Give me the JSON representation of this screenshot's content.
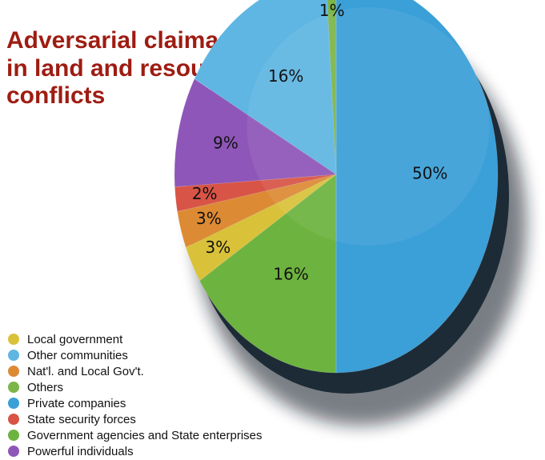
{
  "chart_data": {
    "type": "pie",
    "title_lines": [
      "Adversarial claimants",
      "in land and resource",
      "conflicts"
    ],
    "slices": [
      {
        "label": "Private companies",
        "value": 50,
        "display": "50%",
        "color": "#3b9fd8"
      },
      {
        "label": "Government agencies and State enterprises",
        "value": 16,
        "display": "16%",
        "color": "#6db33f"
      },
      {
        "label": "Local government",
        "value": 3,
        "display": "3%",
        "color": "#d9c23a"
      },
      {
        "label": "Nat'l. and Local Gov't.",
        "value": 3,
        "display": "3%",
        "color": "#dd8a34"
      },
      {
        "label": "State security forces",
        "value": 2,
        "display": "2%",
        "color": "#d85447"
      },
      {
        "label": "Powerful individuals",
        "value": 9,
        "display": "9%",
        "color": "#8e56b8"
      },
      {
        "label": "Other communities",
        "value": 16,
        "display": "16%",
        "color": "#5fb6e2"
      },
      {
        "label": "Others",
        "value": 1,
        "display": "1%",
        "color": "#7cb548"
      }
    ],
    "legend_order": [
      "Local government",
      "Other communities",
      "Nat'l. and Local Gov't.",
      "Others",
      "Private companies",
      "State security forces",
      "Government agencies and State enterprises",
      "Powerful individuals"
    ],
    "legend_placement": "bottom-left"
  }
}
